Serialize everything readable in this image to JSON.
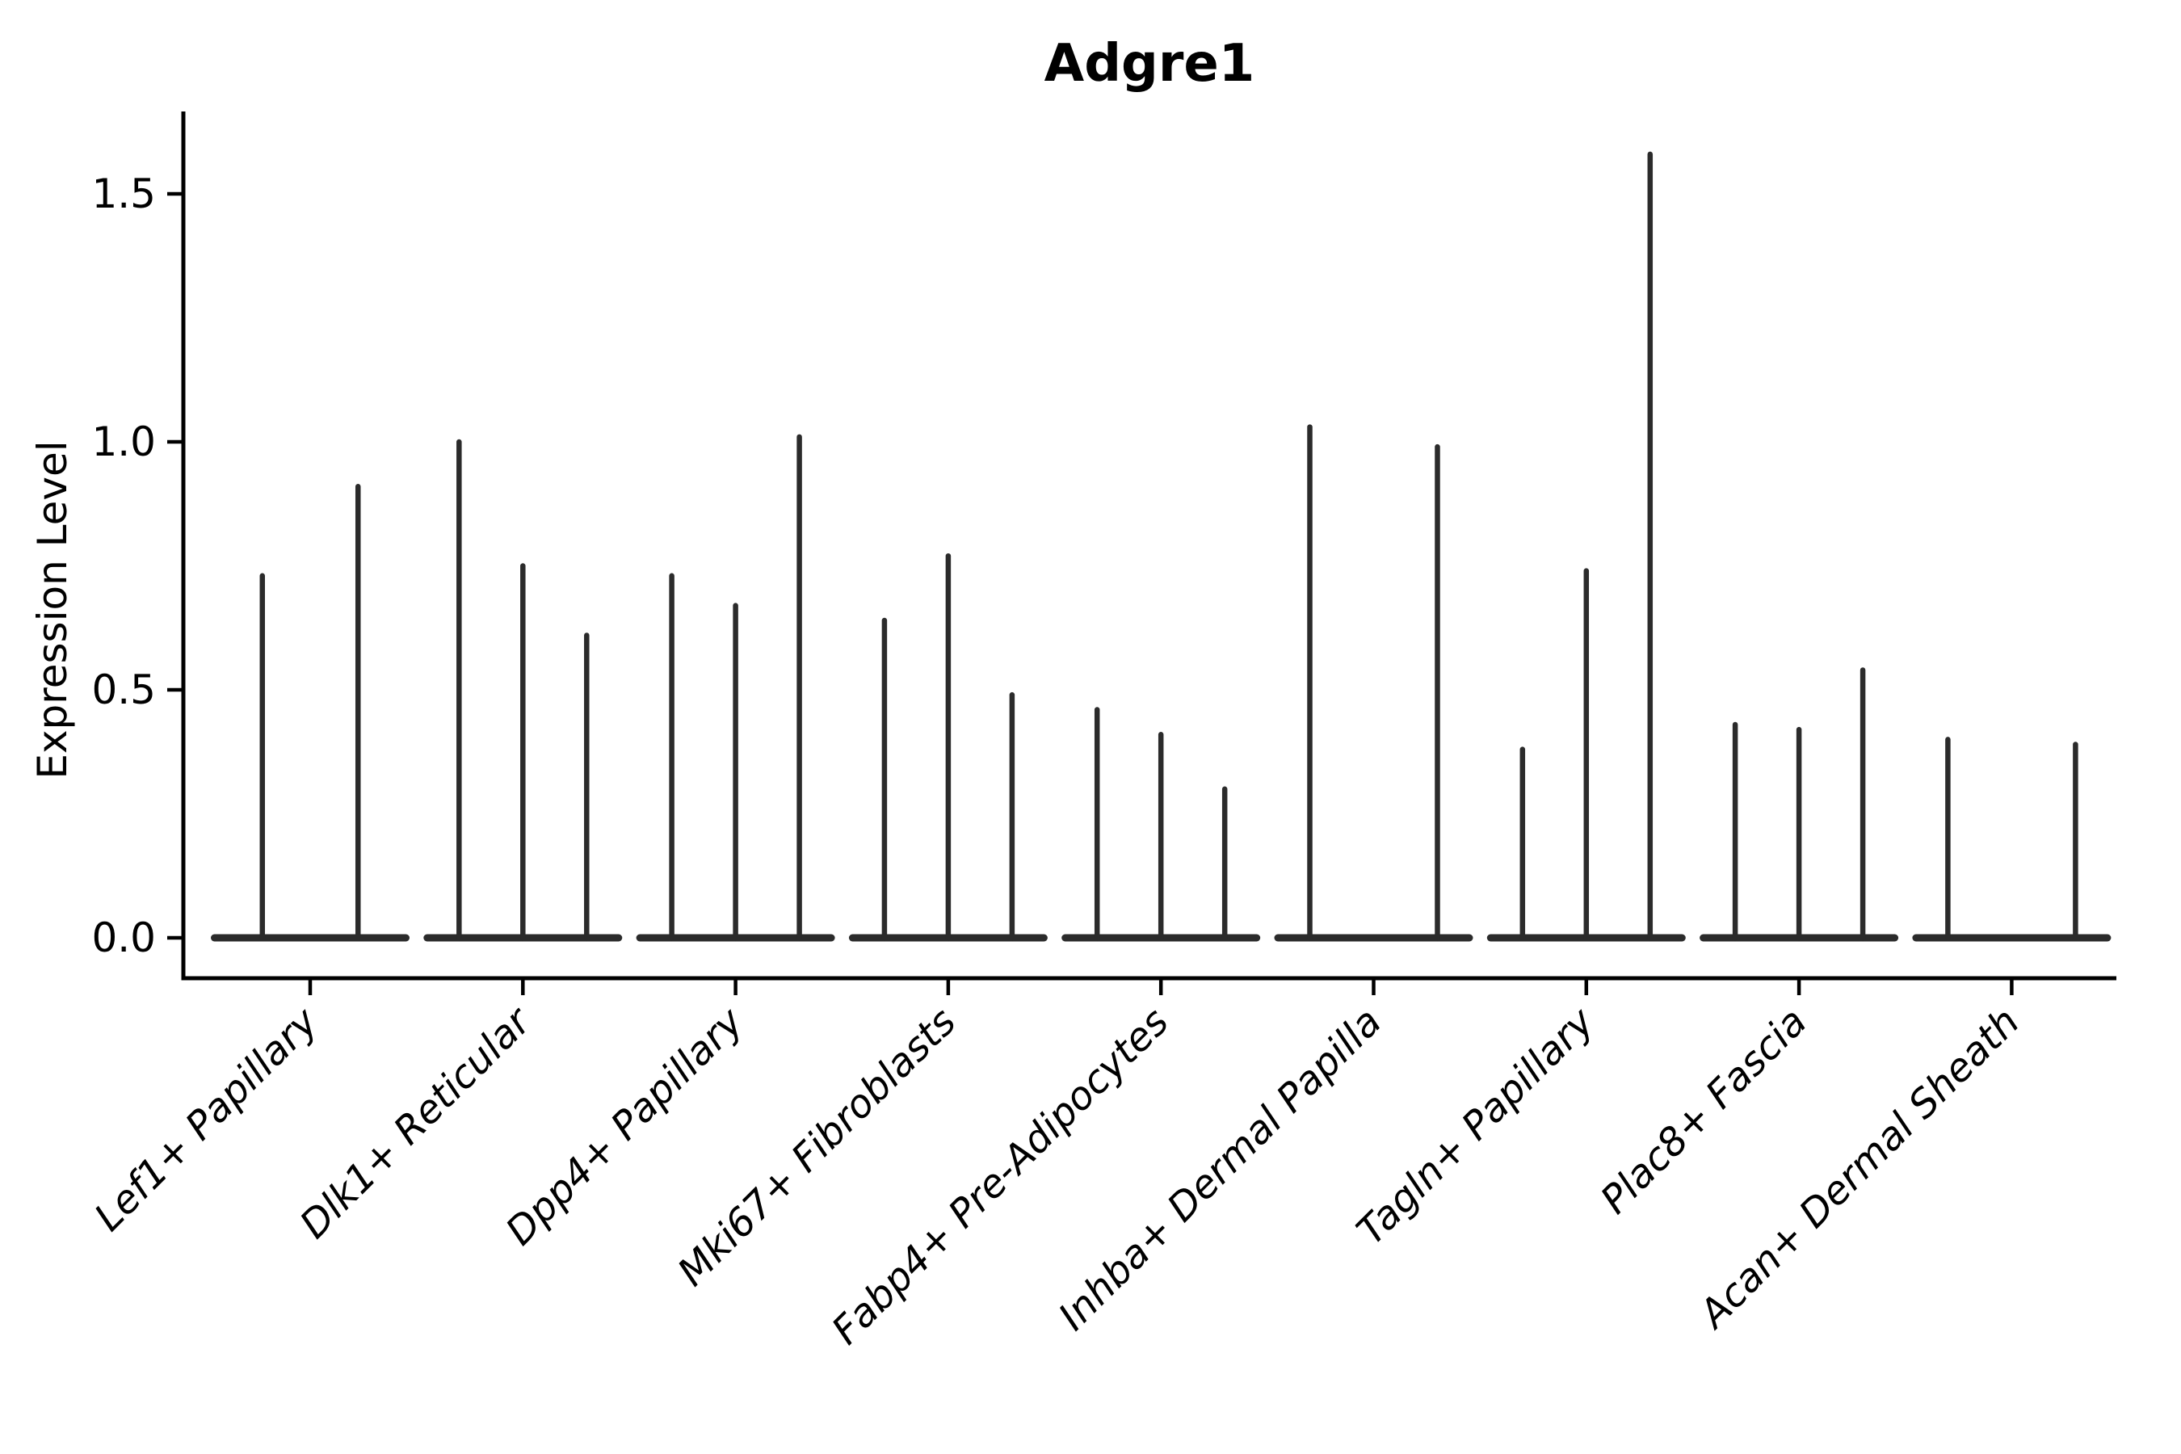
{
  "chart_data": {
    "type": "violin",
    "title": "Adgre1",
    "xlabel": "",
    "ylabel": "Expression Level",
    "yticks": [
      "0.0",
      "0.5",
      "1.0",
      "1.5"
    ],
    "ytick_values": [
      0.0,
      0.5,
      1.0,
      1.5
    ],
    "ylim": [
      -0.08,
      1.66
    ],
    "grid": false,
    "legend": "none",
    "accent_color": "#2b2b2b",
    "spine_color": "#000000",
    "categories": [
      "Lef1+ Papillary",
      "Dlk1+ Reticular",
      "Dpp4+ Papillary",
      "Mki67+ Fibroblasts",
      "Fabp4+ Pre-Adipocytes",
      "Inhba+ Dermal Papilla",
      "Tagln+ Papillary",
      "Plac8+ Fascia",
      "Acan+ Dermal Sheath"
    ],
    "groups": [
      {
        "category": "Lef1+ Papillary",
        "violin_offsets": [
          -0.225,
          0.225
        ],
        "violin_max_values": [
          0.73,
          0.91
        ]
      },
      {
        "category": "Dlk1+ Reticular",
        "violin_offsets": [
          -0.3,
          0,
          0.3
        ],
        "violin_max_values": [
          1.0,
          0.75,
          0.61
        ]
      },
      {
        "category": "Dpp4+ Papillary",
        "violin_offsets": [
          -0.3,
          0,
          0.3
        ],
        "violin_max_values": [
          0.73,
          0.67,
          1.01
        ]
      },
      {
        "category": "Mki67+ Fibroblasts",
        "violin_offsets": [
          -0.3,
          0,
          0.3
        ],
        "violin_max_values": [
          0.64,
          0.77,
          0.49
        ]
      },
      {
        "category": "Fabp4+ Pre-Adipocytes",
        "violin_offsets": [
          -0.3,
          0,
          0.3
        ],
        "violin_max_values": [
          0.46,
          0.41,
          0.3
        ]
      },
      {
        "category": "Inhba+ Dermal Papilla",
        "violin_offsets": [
          -0.3,
          0.3
        ],
        "violin_max_values": [
          1.03,
          0.99
        ]
      },
      {
        "category": "Tagln+ Papillary",
        "violin_offsets": [
          -0.3,
          0,
          0.3
        ],
        "violin_max_values": [
          0.38,
          0.74,
          1.58
        ]
      },
      {
        "category": "Plac8+ Fascia",
        "violin_offsets": [
          -0.3,
          0,
          0.3
        ],
        "violin_max_values": [
          0.43,
          0.42,
          0.54
        ]
      },
      {
        "category": "Acan+ Dermal Sheath",
        "violin_offsets": [
          -0.3,
          0.3
        ],
        "violin_max_values": [
          0.4,
          0.39
        ]
      }
    ]
  }
}
